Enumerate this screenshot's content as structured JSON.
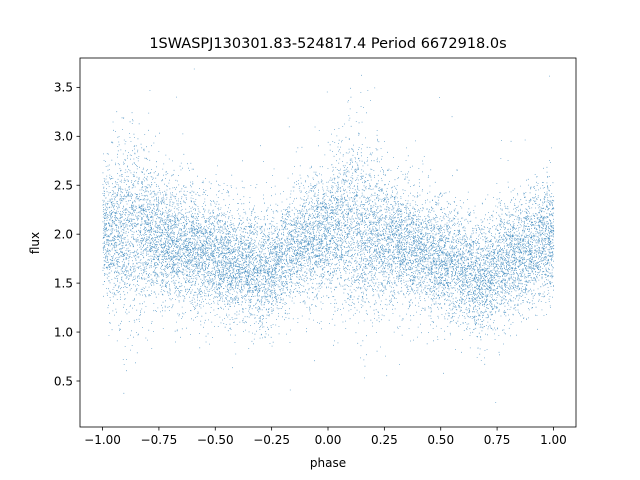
{
  "chart_data": {
    "type": "scatter",
    "title": "1SWASPJ130301.83-524817.4 Period 6672918.0s",
    "xlabel": "phase",
    "ylabel": "flux",
    "xlim": [
      -1.1,
      1.1
    ],
    "ylim": [
      0.03,
      3.8
    ],
    "xticks": [
      -1.0,
      -0.75,
      -0.5,
      -0.25,
      0.0,
      0.25,
      0.5,
      0.75,
      1.0
    ],
    "xtick_labels": [
      "−1.00",
      "−0.75",
      "−0.50",
      "−0.25",
      "0.00",
      "0.25",
      "0.50",
      "0.75",
      "1.00"
    ],
    "yticks": [
      0.5,
      1.0,
      1.5,
      2.0,
      2.5,
      3.0,
      3.5
    ],
    "ytick_labels": [
      "0.5",
      "1.0",
      "1.5",
      "2.0",
      "2.5",
      "3.0",
      "3.5"
    ],
    "grid": false,
    "legend": "none",
    "marker_color": "#1f77b4",
    "series": [
      {
        "phase_range": [
          -1.0,
          1.0
        ],
        "point_count": 16000,
        "profile": {
          "phase": [
            -1.0,
            -0.9,
            -0.85,
            -0.8,
            -0.7,
            -0.6,
            -0.5,
            -0.4,
            -0.3,
            -0.2,
            -0.1,
            0.0,
            0.1,
            0.15,
            0.2,
            0.3,
            0.4,
            0.5,
            0.6,
            0.7,
            0.8,
            0.9,
            1.0
          ],
          "median_flux": [
            2.0,
            2.05,
            2.1,
            2.0,
            1.9,
            1.85,
            1.75,
            1.7,
            1.6,
            1.75,
            1.95,
            2.0,
            2.1,
            2.05,
            2.0,
            1.9,
            1.85,
            1.75,
            1.65,
            1.55,
            1.75,
            1.85,
            2.0
          ],
          "spread": [
            0.3,
            0.45,
            0.5,
            0.4,
            0.3,
            0.3,
            0.3,
            0.28,
            0.3,
            0.28,
            0.3,
            0.35,
            0.45,
            0.5,
            0.4,
            0.3,
            0.3,
            0.3,
            0.28,
            0.3,
            0.28,
            0.3,
            0.3
          ]
        }
      }
    ]
  }
}
